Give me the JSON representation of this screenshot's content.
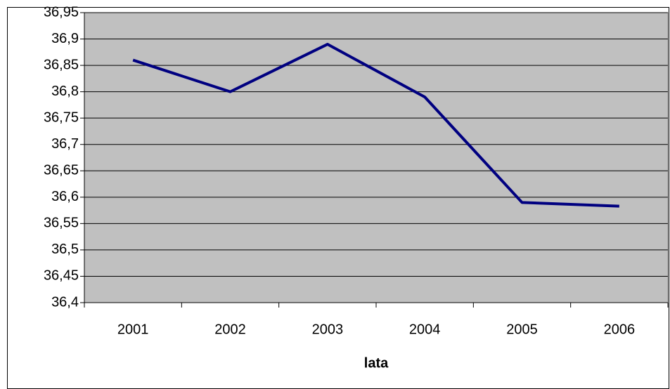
{
  "chart_data": {
    "type": "line",
    "categories": [
      "2001",
      "2002",
      "2003",
      "2004",
      "2005",
      "2006"
    ],
    "series": [
      {
        "color": "#000080",
        "values": [
          36.86,
          36.8,
          36.89,
          36.79,
          36.59,
          36.583
        ]
      }
    ],
    "xlabel": "lata",
    "ylim": [
      36.4,
      36.95
    ],
    "yticks": [
      {
        "value": 36.4,
        "label": "36,4"
      },
      {
        "value": 36.45,
        "label": "36,45"
      },
      {
        "value": 36.5,
        "label": "36,5"
      },
      {
        "value": 36.55,
        "label": "36,55"
      },
      {
        "value": 36.6,
        "label": "36,6"
      },
      {
        "value": 36.65,
        "label": "36,65"
      },
      {
        "value": 36.7,
        "label": "36,7"
      },
      {
        "value": 36.75,
        "label": "36,75"
      },
      {
        "value": 36.8,
        "label": "36,8"
      },
      {
        "value": 36.85,
        "label": "36,85"
      },
      {
        "value": 36.9,
        "label": "36,9"
      },
      {
        "value": 36.95,
        "label": "36,95"
      }
    ],
    "grid": true,
    "plot_background": "#c0c0c0"
  }
}
